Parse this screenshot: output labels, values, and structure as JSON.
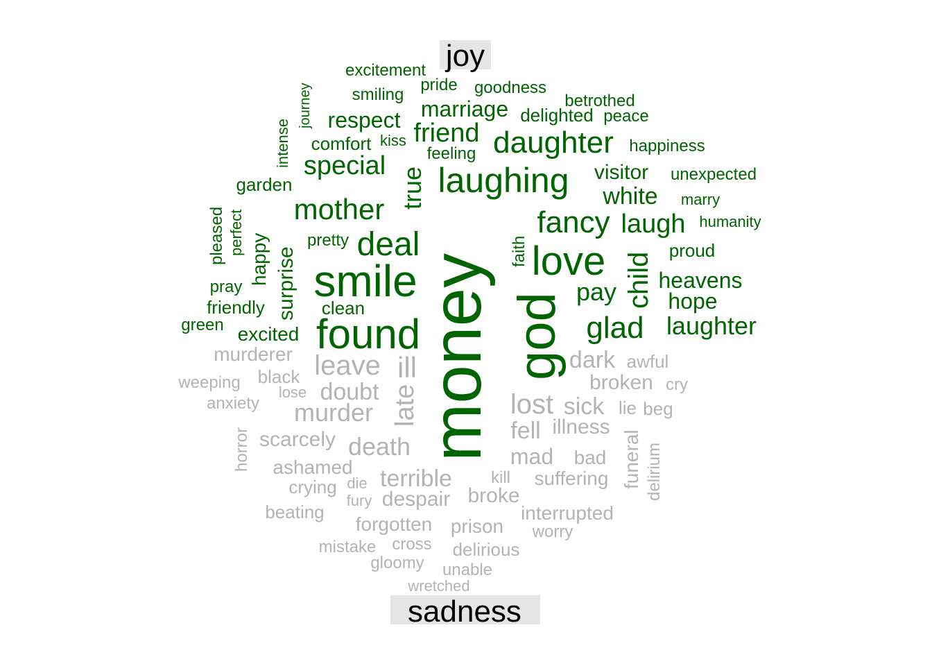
{
  "chart_data": {
    "type": "wordcloud",
    "groups": [
      {
        "name": "joy",
        "color": "#006400",
        "words": [
          "money",
          "god",
          "smile",
          "found",
          "laughing",
          "love",
          "daughter",
          "deal",
          "mother",
          "friend",
          "true",
          "fancy",
          "glad",
          "laugh",
          "child",
          "special",
          "laughter",
          "marriage",
          "heavens",
          "hope",
          "pay",
          "white",
          "visitor",
          "respect",
          "surprise",
          "happy",
          "excited",
          "comfort",
          "kiss",
          "feeling",
          "garden",
          "pretty",
          "clean",
          "friendly",
          "pray",
          "green",
          "perfect",
          "pleased",
          "intense",
          "journey",
          "excitement",
          "smiling",
          "pride",
          "goodness",
          "betrothed",
          "delighted",
          "peace",
          "happiness",
          "unexpected",
          "marry",
          "humanity",
          "proud",
          "faith"
        ]
      },
      {
        "name": "sadness",
        "color": "#b3b3b3",
        "words": [
          "ill",
          "leave",
          "late",
          "doubt",
          "murder",
          "death",
          "lost",
          "dark",
          "sick",
          "fell",
          "mad",
          "illness",
          "broken",
          "awful",
          "cry",
          "lie",
          "beg",
          "bad",
          "suffering",
          "funeral",
          "delirium",
          "scarcely",
          "murderer",
          "black",
          "weeping",
          "lose",
          "anxiety",
          "horror",
          "ashamed",
          "crying",
          "die",
          "terrible",
          "fury",
          "despair",
          "kill",
          "broke",
          "beating",
          "forgotten",
          "prison",
          "interrupted",
          "worry",
          "mistake",
          "cross",
          "delirious",
          "gloomy",
          "unable",
          "wretched"
        ]
      }
    ]
  }
}
